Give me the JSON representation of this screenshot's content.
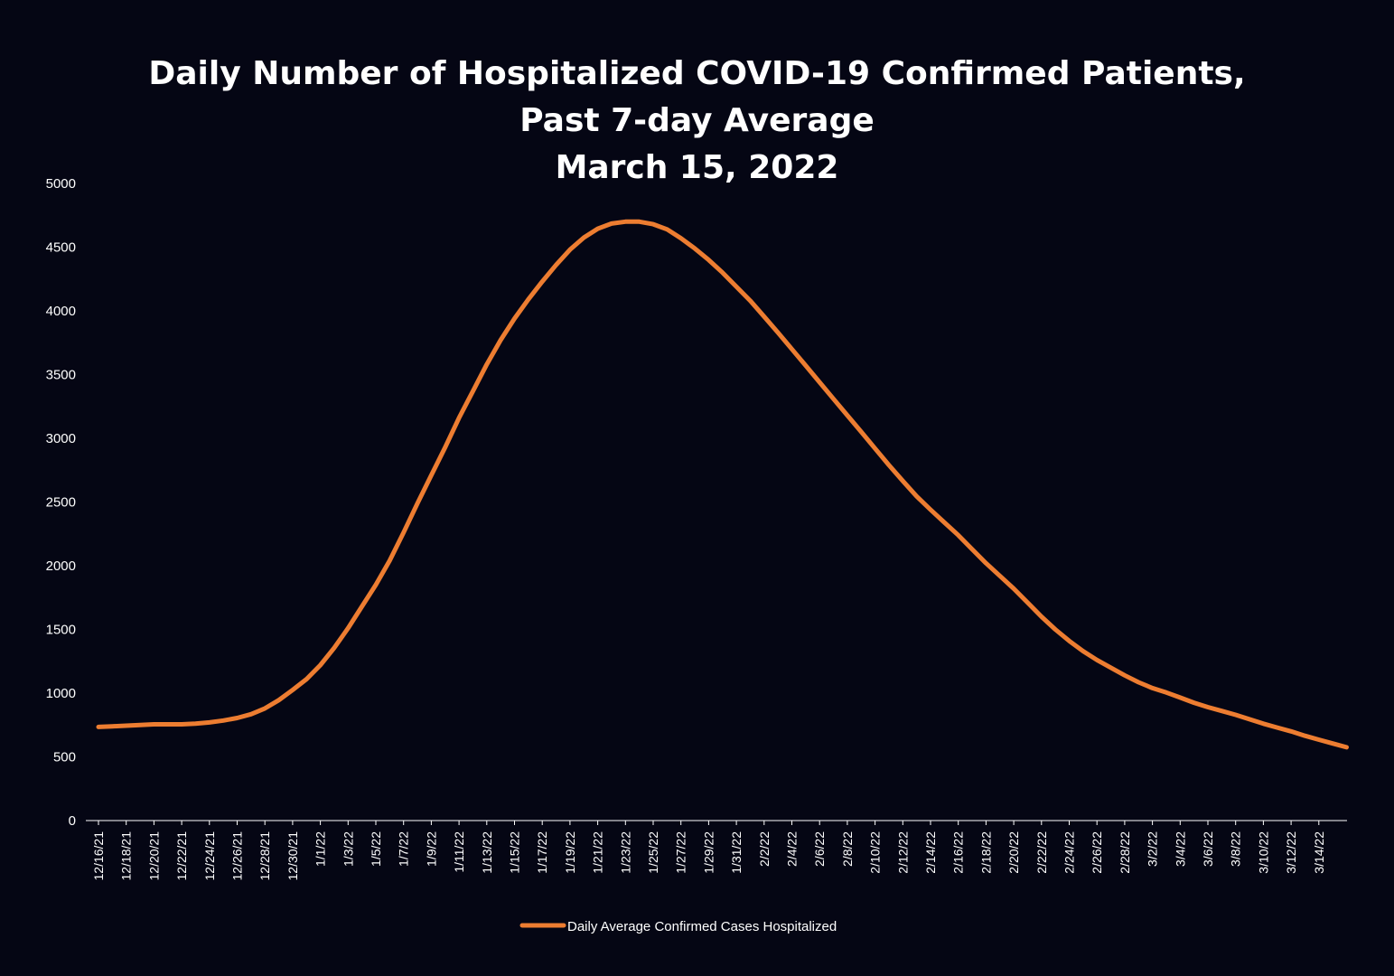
{
  "chart_data": {
    "type": "line",
    "title_lines": [
      "Daily Number of Hospitalized COVID-19 Confirmed Patients,",
      "Past 7-day Average",
      "March 15, 2022"
    ],
    "y_ticks": [
      "0",
      "500",
      "1000",
      "1500",
      "2000",
      "2500",
      "3000",
      "3500",
      "4000",
      "4500",
      "5000"
    ],
    "ylim": [
      0,
      5000
    ],
    "x_tick_labels": [
      "12/16/21",
      "12/18/21",
      "12/20/21",
      "12/22/21",
      "12/24/21",
      "12/26/21",
      "12/28/21",
      "12/30/21",
      "1/1/22",
      "1/3/22",
      "1/5/22",
      "1/7/22",
      "1/9/22",
      "1/11/22",
      "1/13/22",
      "1/15/22",
      "1/17/22",
      "1/19/22",
      "1/21/22",
      "1/23/22",
      "1/25/22",
      "1/27/22",
      "1/29/22",
      "1/31/22",
      "2/2/22",
      "2/4/22",
      "2/6/22",
      "2/8/22",
      "2/10/22",
      "2/12/22",
      "2/14/22",
      "2/16/22",
      "2/18/22",
      "2/20/22",
      "2/22/22",
      "2/24/22",
      "2/26/22",
      "2/28/22",
      "3/2/22",
      "3/4/22",
      "3/6/22",
      "3/8/22",
      "3/10/22",
      "3/12/22",
      "3/14/22"
    ],
    "series": [
      {
        "name": "Daily Average Confirmed Cases Hospitalized",
        "color": "#ed7d31",
        "values": [
          735,
          740,
          745,
          750,
          755,
          755,
          755,
          760,
          770,
          785,
          805,
          835,
          880,
          945,
          1025,
          1110,
          1220,
          1355,
          1510,
          1680,
          1850,
          2040,
          2260,
          2490,
          2710,
          2930,
          3160,
          3370,
          3580,
          3770,
          3940,
          4090,
          4230,
          4360,
          4480,
          4575,
          4645,
          4685,
          4700,
          4700,
          4680,
          4640,
          4570,
          4490,
          4400,
          4300,
          4190,
          4080,
          3955,
          3830,
          3700,
          3570,
          3440,
          3310,
          3180,
          3050,
          2920,
          2790,
          2665,
          2545,
          2440,
          2340,
          2240,
          2130,
          2020,
          1920,
          1820,
          1710,
          1600,
          1500,
          1410,
          1330,
          1260,
          1200,
          1140,
          1085,
          1040,
          1005,
          965,
          925,
          890,
          860,
          830,
          795,
          760,
          730,
          700,
          665,
          635,
          605,
          575
        ]
      }
    ],
    "legend": {
      "placement": "bottom-center"
    }
  }
}
